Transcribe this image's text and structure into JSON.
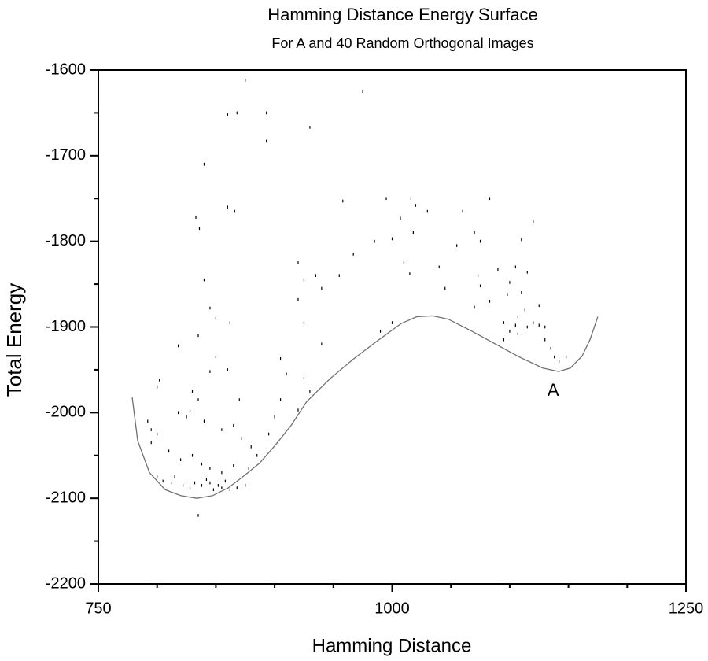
{
  "chart_data": {
    "type": "scatter",
    "title": "Hamming Distance Energy Surface",
    "subtitle": "For A and 40 Random Orthogonal Images",
    "x_label": "Hamming Distance",
    "y_label": "Total Energy",
    "xlim": [
      750,
      1250
    ],
    "ylim": [
      -2200,
      -1600
    ],
    "xticks": [
      750,
      1000,
      1250
    ],
    "yticks": [
      -1600,
      -1700,
      -1800,
      -1900,
      -2000,
      -2100,
      -2200
    ],
    "xminor_ticks": [
      800,
      850,
      900,
      950,
      1050,
      1100,
      1150,
      1200
    ],
    "yminor_ticks": [
      -1650,
      -1750,
      -1850,
      -1950,
      -2050,
      -2150
    ],
    "series": [
      {
        "type": "scatter",
        "color": "#000000",
        "x": [
          875,
          975,
          860,
          868,
          893,
          930,
          893,
          840,
          958,
          860,
          866,
          833,
          836,
          995,
          1016,
          1020,
          1030,
          1060,
          1083,
          1120,
          1007,
          1018,
          1000,
          1070,
          1075,
          1110,
          985,
          967,
          920,
          1010,
          1015,
          1040,
          1055,
          1090,
          1105,
          1115,
          1100,
          1073,
          1075,
          925,
          935,
          940,
          955,
          1045,
          1110,
          1098,
          1083,
          1070,
          920,
          1125,
          1107,
          1113,
          1095,
          1100,
          1105,
          1107,
          1115,
          1120,
          1125,
          1130,
          1130,
          1135,
          1138,
          1142,
          1148,
          1095,
          1000,
          990,
          940,
          925,
          840,
          845,
          850,
          862,
          835,
          818,
          850,
          905,
          910,
          925,
          930,
          845,
          860,
          802,
          800,
          830,
          835,
          870,
          905,
          920,
          900,
          792,
          795,
          800,
          818,
          825,
          828,
          840,
          855,
          865,
          872,
          880,
          885,
          895,
          795,
          810,
          820,
          830,
          838,
          845,
          855,
          865,
          878,
          800,
          805,
          812,
          815,
          822,
          828,
          832,
          838,
          842,
          845,
          848,
          852,
          855,
          858,
          862,
          868,
          875,
          835
        ],
        "y": [
          -1612,
          -1625,
          -1652,
          -1650,
          -1650,
          -1667,
          -1683,
          -1710,
          -1753,
          -1760,
          -1765,
          -1772,
          -1785,
          -1750,
          -1750,
          -1758,
          -1765,
          -1765,
          -1750,
          -1777,
          -1773,
          -1790,
          -1797,
          -1790,
          -1800,
          -1798,
          -1800,
          -1815,
          -1825,
          -1825,
          -1838,
          -1830,
          -1805,
          -1833,
          -1830,
          -1836,
          -1848,
          -1840,
          -1852,
          -1846,
          -1840,
          -1855,
          -1840,
          -1855,
          -1860,
          -1862,
          -1870,
          -1877,
          -1868,
          -1875,
          -1888,
          -1880,
          -1895,
          -1905,
          -1898,
          -1908,
          -1900,
          -1895,
          -1898,
          -1900,
          -1915,
          -1925,
          -1935,
          -1940,
          -1935,
          -1915,
          -1895,
          -1905,
          -1920,
          -1895,
          -1845,
          -1878,
          -1890,
          -1895,
          -1910,
          -1922,
          -1935,
          -1937,
          -1955,
          -1960,
          -1975,
          -1952,
          -1950,
          -1962,
          -1970,
          -1975,
          -1985,
          -1985,
          -1985,
          -1997,
          -2005,
          -2010,
          -2020,
          -2025,
          -2000,
          -2005,
          -1998,
          -2010,
          -2020,
          -2015,
          -2030,
          -2040,
          -2050,
          -2025,
          -2035,
          -2045,
          -2055,
          -2050,
          -2060,
          -2065,
          -2070,
          -2062,
          -2065,
          -2075,
          -2080,
          -2082,
          -2075,
          -2085,
          -2088,
          -2082,
          -2085,
          -2078,
          -2082,
          -2090,
          -2085,
          -2088,
          -2080,
          -2090,
          -2088,
          -2085,
          -2120
        ]
      },
      {
        "type": "line",
        "color": "#707070",
        "x": [
          778.8,
          783.5,
          793.5,
          806.9,
          820.3,
          833.7,
          847.1,
          860.4,
          873.8,
          887.2,
          900.6,
          914,
          927.4,
          947.5,
          967.5,
          987.6,
          1007.7,
          1021.1,
          1034.5,
          1047.9,
          1067.9,
          1088,
          1108.1,
          1128.2,
          1141.6,
          1151.6,
          1161.6,
          1168.3,
          1175
        ],
        "y": [
          -1982,
          -2033,
          -2070,
          -2090,
          -2097,
          -2100,
          -2097,
          -2088,
          -2074,
          -2059,
          -2038,
          -2015,
          -1987,
          -1960,
          -1937,
          -1916,
          -1896,
          -1888,
          -1887,
          -1891,
          -1905,
          -1920,
          -1935,
          -1948,
          -1952,
          -1948,
          -1934,
          -1915,
          -1888
        ]
      }
    ],
    "annotations": [
      {
        "text": "A",
        "x": 1137,
        "y": -1975
      }
    ]
  }
}
